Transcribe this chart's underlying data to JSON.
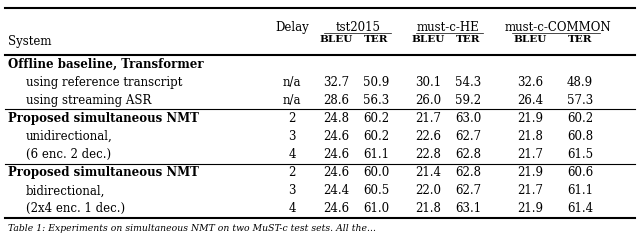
{
  "rows": [
    {
      "system": "Offline baseline, Transformer",
      "bold": true,
      "indent": false,
      "delay": "",
      "tst_bleu": "",
      "tst_ter": "",
      "he_bleu": "",
      "he_ter": "",
      "com_bleu": "",
      "com_ter": ""
    },
    {
      "system": "using reference transcript",
      "bold": false,
      "indent": true,
      "delay": "n/a",
      "tst_bleu": "32.7",
      "tst_ter": "50.9",
      "he_bleu": "30.1",
      "he_ter": "54.3",
      "com_bleu": "32.6",
      "com_ter": "48.9"
    },
    {
      "system": "using streaming ASR",
      "bold": false,
      "indent": true,
      "delay": "n/a",
      "tst_bleu": "28.6",
      "tst_ter": "56.3",
      "he_bleu": "26.0",
      "he_ter": "59.2",
      "com_bleu": "26.4",
      "com_ter": "57.3"
    },
    {
      "system": "Proposed simultaneous NMT",
      "bold": true,
      "indent": false,
      "delay": "2",
      "tst_bleu": "24.8",
      "tst_ter": "60.2",
      "he_bleu": "21.7",
      "he_ter": "63.0",
      "com_bleu": "21.9",
      "com_ter": "60.2"
    },
    {
      "system": "unidirectional,",
      "bold": false,
      "indent": true,
      "delay": "3",
      "tst_bleu": "24.6",
      "tst_ter": "60.2",
      "he_bleu": "22.6",
      "he_ter": "62.7",
      "com_bleu": "21.8",
      "com_ter": "60.8"
    },
    {
      "system": "(6 enc. 2 dec.)",
      "bold": false,
      "indent": true,
      "delay": "4",
      "tst_bleu": "24.6",
      "tst_ter": "61.1",
      "he_bleu": "22.8",
      "he_ter": "62.8",
      "com_bleu": "21.7",
      "com_ter": "61.5"
    },
    {
      "system": "Proposed simultaneous NMT",
      "bold": true,
      "indent": false,
      "delay": "2",
      "tst_bleu": "24.6",
      "tst_ter": "60.0",
      "he_bleu": "21.4",
      "he_ter": "62.8",
      "com_bleu": "21.9",
      "com_ter": "60.6"
    },
    {
      "system": "bidirectional,",
      "bold": false,
      "indent": true,
      "delay": "3",
      "tst_bleu": "24.4",
      "tst_ter": "60.5",
      "he_bleu": "22.0",
      "he_ter": "62.7",
      "com_bleu": "21.7",
      "com_ter": "61.1"
    },
    {
      "system": "(2x4 enc. 1 dec.)",
      "bold": false,
      "indent": true,
      "delay": "4",
      "tst_bleu": "24.6",
      "tst_ter": "61.0",
      "he_bleu": "21.8",
      "he_ter": "63.1",
      "com_bleu": "21.9",
      "com_ter": "61.4"
    }
  ],
  "section_breaks": [
    3,
    6
  ],
  "font_size": 8.5,
  "footer": "Table 1: Experiments on simultaneous NMT on two MuST-c test sets. All the...",
  "background_color": "#ffffff"
}
